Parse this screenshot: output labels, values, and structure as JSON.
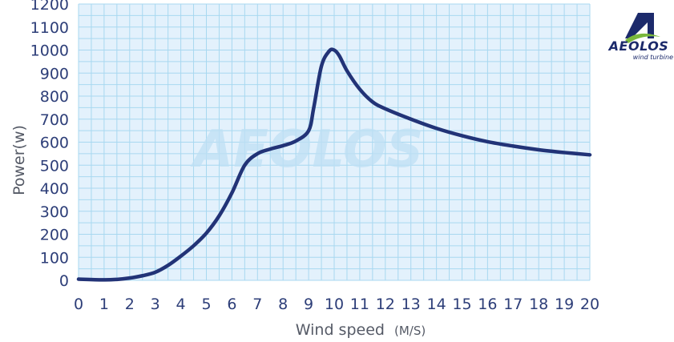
{
  "chart_data": {
    "type": "line",
    "xlabel": "Wind speed",
    "xunit": "(M/S)",
    "ylabel": "Power(w)",
    "watermark": "AEOLOS",
    "xlim": [
      0,
      20
    ],
    "ylim": [
      0,
      1200
    ],
    "x_ticks": [
      "0",
      "1",
      "2",
      "3",
      "4",
      "5",
      "6",
      "7",
      "8",
      "9",
      "10",
      "11",
      "12",
      "13",
      "14",
      "15",
      "16",
      "17",
      "18",
      "19",
      "20"
    ],
    "y_ticks": [
      "0",
      "100",
      "200",
      "300",
      "400",
      "500",
      "600",
      "700",
      "800",
      "900",
      "1000",
      "1100",
      "1200"
    ],
    "grid": true,
    "series": [
      {
        "x": [
          0,
          1,
          1.5,
          2,
          2.5,
          3,
          3.5,
          4,
          4.5,
          5,
          5.5,
          6,
          6.5,
          7,
          7.5,
          8,
          8.5,
          9,
          9.2,
          9.5,
          9.8,
          10,
          10.2,
          10.5,
          11,
          11.5,
          12,
          13,
          14,
          15,
          16,
          17,
          18,
          19,
          20
        ],
        "y": [
          5,
          2,
          4,
          10,
          20,
          35,
          65,
          105,
          150,
          205,
          280,
          380,
          500,
          550,
          570,
          585,
          605,
          650,
          750,
          930,
          995,
          1000,
          975,
          910,
          830,
          775,
          745,
          700,
          660,
          628,
          602,
          583,
          567,
          555,
          545
        ]
      }
    ],
    "color": "#223377",
    "background": "#e3f1fc",
    "grid_color": "#a8d8f0"
  },
  "brand": {
    "name": "AEOLOS",
    "tagline": "wind turbine"
  }
}
